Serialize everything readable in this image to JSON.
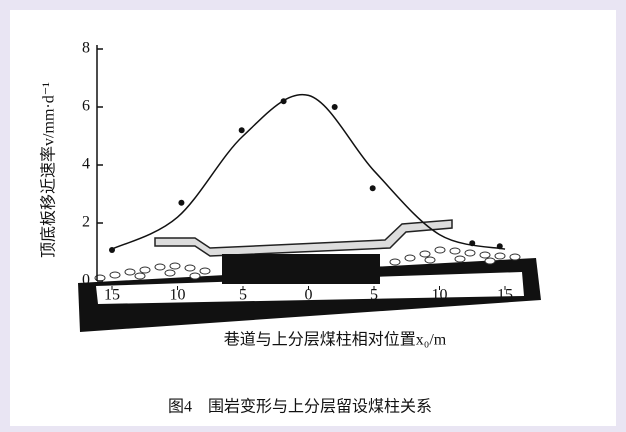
{
  "chart_data": {
    "type": "scatter",
    "y_label": "顶底板移近速率v/mm·d⁻¹",
    "x_label": "巷道与上分层煤柱相对位置x₀/m",
    "caption": "图4　围岩变形与上分层留设煤柱关系",
    "xlim": [
      -15,
      15
    ],
    "ylim": [
      0,
      8
    ],
    "xticks": [
      {
        "value": -15,
        "label": "15"
      },
      {
        "value": -10,
        "label": "10"
      },
      {
        "value": -5,
        "label": "5"
      },
      0,
      5,
      10,
      15
    ],
    "yticks": [
      0,
      2,
      4,
      6,
      8
    ],
    "series": [
      {
        "kind": "points",
        "color": "#111111",
        "x": [
          -15,
          -9.7,
          -5.1,
          -1.9,
          2.0,
          4.9,
          12.5,
          14.6
        ],
        "values": [
          1.07,
          2.7,
          5.2,
          6.2,
          6.0,
          3.2,
          1.3,
          1.2
        ]
      },
      {
        "kind": "curve",
        "color": "#111111",
        "x": [
          -15,
          -10,
          -5,
          0,
          5,
          10,
          15
        ],
        "values": [
          1.1,
          2.2,
          5.0,
          6.4,
          3.8,
          1.6,
          1.1
        ]
      }
    ]
  }
}
